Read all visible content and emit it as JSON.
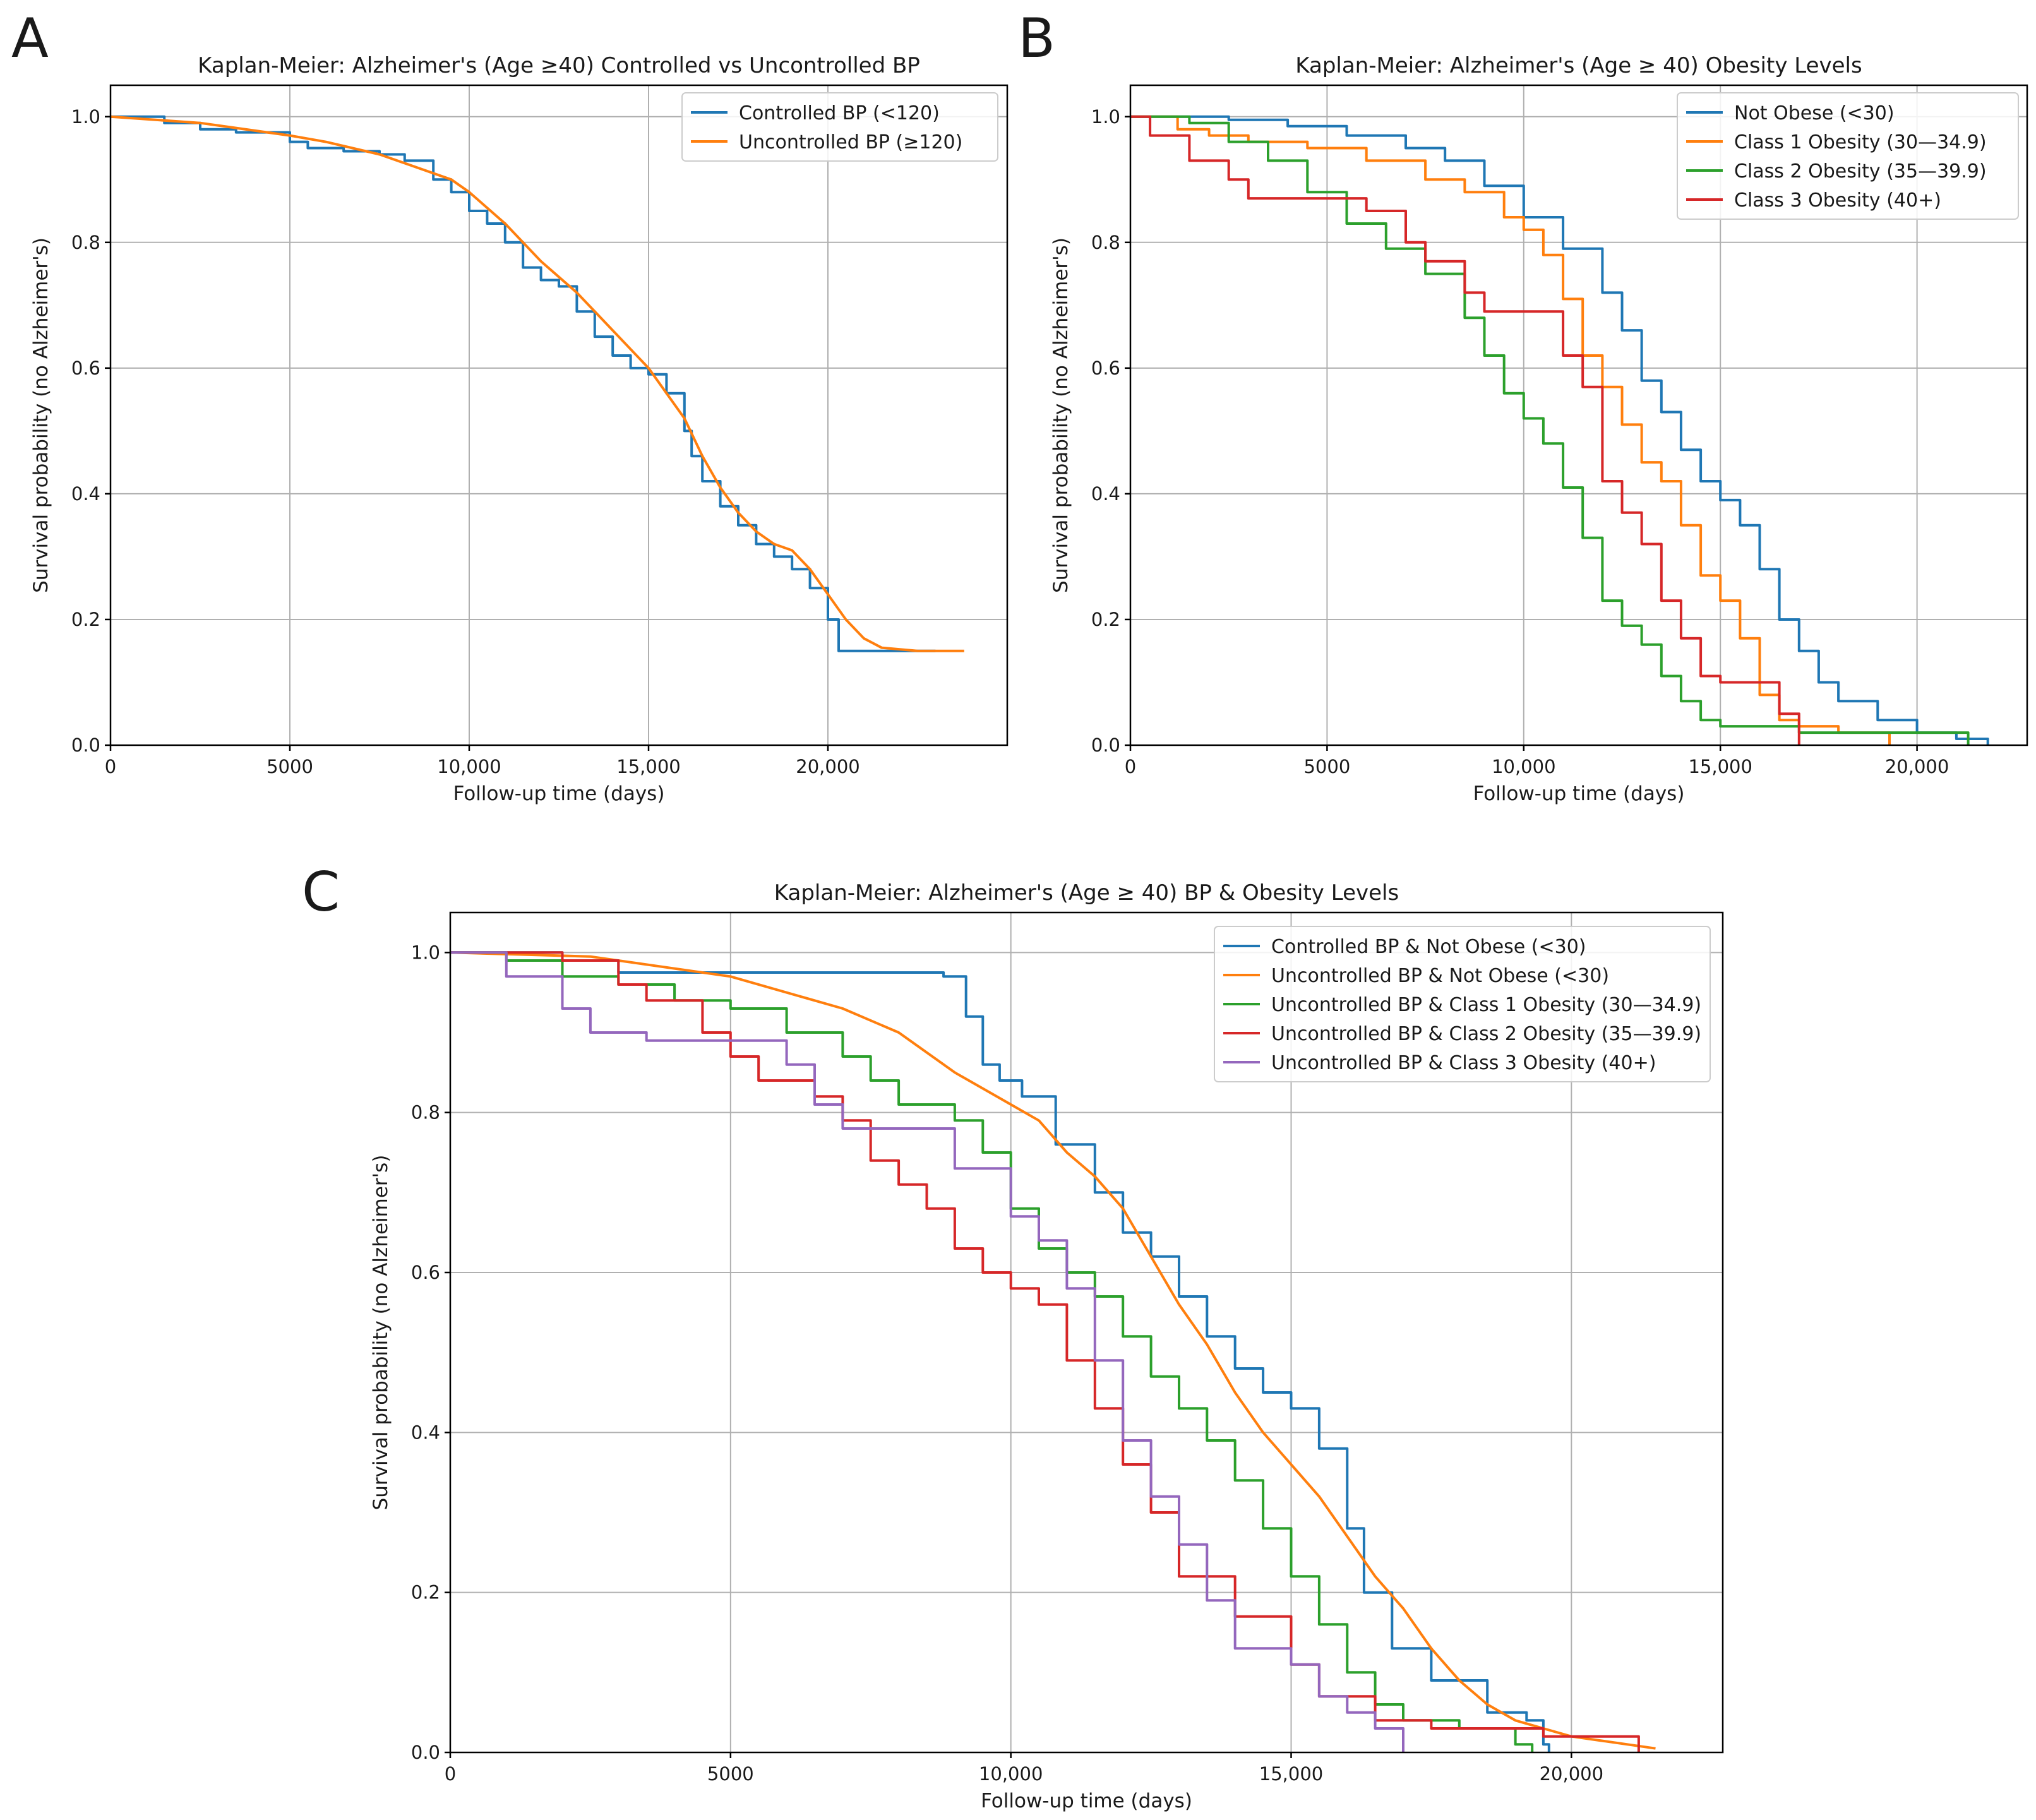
{
  "chart_data": [
    {
      "panel": "A",
      "type": "line",
      "title": "Kaplan-Meier: Alzheimer's (Age ≥40) Controlled vs Uncontrolled BP",
      "xlabel": "Follow-up time (days)",
      "ylabel": "Survival probability (no Alzheimer's)",
      "xlim": [
        0,
        25000
      ],
      "ylim": [
        0,
        1.05
      ],
      "xticks": [
        0,
        5000,
        10000,
        15000,
        20000
      ],
      "xtick_labels": [
        "0",
        "5000",
        "10,000",
        "15,000",
        "20,000"
      ],
      "yticks": [
        0,
        0.2,
        0.4,
        0.6,
        0.8,
        1.0
      ],
      "ytick_labels": [
        "0.0",
        "0.2",
        "0.4",
        "0.6",
        "0.8",
        "1.0"
      ],
      "grid": true,
      "legend_position": "top-right",
      "series": [
        {
          "name": "Controlled BP (<120)",
          "color": "#1f77b4",
          "step": true,
          "x": [
            0,
            1500,
            2500,
            3500,
            5000,
            5500,
            6500,
            7500,
            8200,
            9000,
            9500,
            10000,
            10500,
            11000,
            11500,
            12000,
            12500,
            13000,
            13500,
            14000,
            14500,
            15000,
            15500,
            16000,
            16200,
            16500,
            17000,
            17500,
            18000,
            18500,
            19000,
            19500,
            20000,
            20300,
            21500,
            23000
          ],
          "y": [
            1.0,
            0.99,
            0.98,
            0.975,
            0.96,
            0.95,
            0.945,
            0.94,
            0.93,
            0.9,
            0.88,
            0.85,
            0.83,
            0.8,
            0.76,
            0.74,
            0.73,
            0.69,
            0.65,
            0.62,
            0.6,
            0.59,
            0.56,
            0.5,
            0.46,
            0.42,
            0.38,
            0.35,
            0.32,
            0.3,
            0.28,
            0.25,
            0.2,
            0.15,
            0.15,
            0.15
          ]
        },
        {
          "name": "Uncontrolled BP (≥120)",
          "color": "#ff7f0e",
          "step": false,
          "x": [
            0,
            2500,
            5000,
            6000,
            7500,
            8500,
            9500,
            10000,
            11000,
            12000,
            13000,
            14000,
            15000,
            15500,
            16000,
            16500,
            17000,
            17500,
            18000,
            18500,
            19000,
            19500,
            20000,
            20500,
            21000,
            21500,
            22500,
            23800
          ],
          "y": [
            1.0,
            0.99,
            0.97,
            0.96,
            0.94,
            0.92,
            0.9,
            0.88,
            0.83,
            0.77,
            0.72,
            0.66,
            0.6,
            0.56,
            0.52,
            0.46,
            0.41,
            0.37,
            0.34,
            0.32,
            0.31,
            0.28,
            0.24,
            0.2,
            0.17,
            0.155,
            0.15,
            0.15
          ]
        }
      ]
    },
    {
      "panel": "B",
      "type": "line",
      "title": "Kaplan-Meier: Alzheimer's (Age ≥ 40) Obesity Levels",
      "xlabel": "Follow-up time (days)",
      "ylabel": "Survival probability (no Alzheimer's)",
      "xlim": [
        0,
        22800
      ],
      "ylim": [
        0,
        1.05
      ],
      "xticks": [
        0,
        5000,
        10000,
        15000,
        20000
      ],
      "xtick_labels": [
        "0",
        "5000",
        "10,000",
        "15,000",
        "20,000"
      ],
      "yticks": [
        0,
        0.2,
        0.4,
        0.6,
        0.8,
        1.0
      ],
      "ytick_labels": [
        "0.0",
        "0.2",
        "0.4",
        "0.6",
        "0.8",
        "1.0"
      ],
      "grid": true,
      "legend_position": "top-right",
      "series": [
        {
          "name": "Not Obese (<30)",
          "color": "#1f77b4",
          "step": true,
          "x": [
            0,
            2500,
            4000,
            5500,
            7000,
            8000,
            9000,
            10000,
            11000,
            12000,
            12500,
            13000,
            13500,
            14000,
            14500,
            15000,
            15500,
            16000,
            16500,
            17000,
            17500,
            18000,
            19000,
            20000,
            21000,
            21800
          ],
          "y": [
            1.0,
            0.995,
            0.985,
            0.97,
            0.95,
            0.93,
            0.89,
            0.84,
            0.79,
            0.72,
            0.66,
            0.58,
            0.53,
            0.47,
            0.42,
            0.39,
            0.35,
            0.28,
            0.2,
            0.15,
            0.1,
            0.07,
            0.04,
            0.02,
            0.01,
            0.0
          ]
        },
        {
          "name": "Class 1 Obesity (30—34.9)",
          "color": "#ff7f0e",
          "step": true,
          "x": [
            0,
            1200,
            2000,
            3000,
            4500,
            6000,
            7500,
            8500,
            9500,
            10000,
            10500,
            11000,
            11500,
            12000,
            12500,
            13000,
            13500,
            14000,
            14500,
            15000,
            15500,
            16000,
            16500,
            17000,
            18000,
            19300
          ],
          "y": [
            1.0,
            0.98,
            0.97,
            0.96,
            0.95,
            0.93,
            0.9,
            0.88,
            0.84,
            0.82,
            0.78,
            0.71,
            0.62,
            0.57,
            0.51,
            0.45,
            0.42,
            0.35,
            0.27,
            0.23,
            0.17,
            0.08,
            0.04,
            0.03,
            0.02,
            0.0
          ]
        },
        {
          "name": "Class 2 Obesity (35—39.9)",
          "color": "#2ca02c",
          "step": true,
          "x": [
            0,
            1500,
            2500,
            3500,
            4500,
            5500,
            6500,
            7500,
            8500,
            9000,
            9500,
            10000,
            10500,
            11000,
            11500,
            12000,
            12500,
            13000,
            13500,
            14000,
            14500,
            15000,
            16000,
            17000,
            19000,
            21100,
            21300
          ],
          "y": [
            1.0,
            0.99,
            0.96,
            0.93,
            0.88,
            0.83,
            0.79,
            0.75,
            0.68,
            0.62,
            0.56,
            0.52,
            0.48,
            0.41,
            0.33,
            0.23,
            0.19,
            0.16,
            0.11,
            0.07,
            0.04,
            0.03,
            0.03,
            0.02,
            0.02,
            0.02,
            0.0
          ]
        },
        {
          "name": "Class 3 Obesity (40+)",
          "color": "#d62728",
          "step": true,
          "x": [
            0,
            500,
            1500,
            2500,
            3000,
            4000,
            5000,
            6000,
            7000,
            7500,
            8500,
            9000,
            10000,
            11000,
            11500,
            12000,
            12500,
            13000,
            13500,
            14000,
            14500,
            15000,
            16000,
            16500,
            17000
          ],
          "y": [
            1.0,
            0.97,
            0.93,
            0.9,
            0.87,
            0.87,
            0.87,
            0.85,
            0.8,
            0.77,
            0.72,
            0.69,
            0.69,
            0.62,
            0.57,
            0.42,
            0.37,
            0.32,
            0.23,
            0.17,
            0.11,
            0.1,
            0.1,
            0.05,
            0.0
          ]
        }
      ]
    },
    {
      "panel": "C",
      "type": "line",
      "title": "Kaplan-Meier: Alzheimer's (Age ≥ 40) BP & Obesity Levels",
      "xlabel": "Follow-up time (days)",
      "ylabel": "Survival probability (no Alzheimer's)",
      "xlim": [
        0,
        22700
      ],
      "ylim": [
        0,
        1.05
      ],
      "xticks": [
        0,
        5000,
        10000,
        15000,
        20000
      ],
      "xtick_labels": [
        "0",
        "5000",
        "10,000",
        "15,000",
        "20,000"
      ],
      "yticks": [
        0,
        0.2,
        0.4,
        0.6,
        0.8,
        1.0
      ],
      "ytick_labels": [
        "0.0",
        "0.2",
        "0.4",
        "0.6",
        "0.8",
        "1.0"
      ],
      "grid": true,
      "legend_position": "top-right",
      "series": [
        {
          "name": "Controlled BP & Not Obese (<30)",
          "color": "#1f77b4",
          "step": true,
          "x": [
            0,
            2000,
            3000,
            8800,
            9200,
            9500,
            9800,
            10200,
            10800,
            11500,
            12000,
            12500,
            13000,
            13500,
            14000,
            14500,
            15000,
            15500,
            16000,
            16300,
            16800,
            17500,
            18500,
            19200,
            19500,
            19600
          ],
          "y": [
            1.0,
            0.99,
            0.975,
            0.97,
            0.92,
            0.86,
            0.84,
            0.82,
            0.76,
            0.7,
            0.65,
            0.62,
            0.57,
            0.52,
            0.48,
            0.45,
            0.43,
            0.38,
            0.28,
            0.2,
            0.13,
            0.09,
            0.05,
            0.04,
            0.01,
            0.0
          ]
        },
        {
          "name": "Uncontrolled BP & Not Obese (<30)",
          "color": "#ff7f0e",
          "step": false,
          "x": [
            0,
            2500,
            5000,
            7000,
            8000,
            9000,
            10000,
            10500,
            11000,
            11500,
            12000,
            12500,
            13000,
            13500,
            14000,
            14500,
            15000,
            15500,
            16000,
            16500,
            17000,
            17500,
            18000,
            18500,
            19000,
            19500,
            20000,
            21000,
            21500
          ],
          "y": [
            1.0,
            0.995,
            0.97,
            0.93,
            0.9,
            0.85,
            0.81,
            0.79,
            0.75,
            0.72,
            0.68,
            0.62,
            0.56,
            0.51,
            0.45,
            0.4,
            0.36,
            0.32,
            0.27,
            0.22,
            0.18,
            0.13,
            0.09,
            0.06,
            0.04,
            0.03,
            0.02,
            0.01,
            0.005
          ]
        },
        {
          "name": "Uncontrolled BP & Class 1 Obesity (30—34.9)",
          "color": "#2ca02c",
          "step": true,
          "x": [
            0,
            1000,
            2000,
            3000,
            4000,
            5000,
            6000,
            7000,
            7500,
            8000,
            9000,
            9500,
            10000,
            10500,
            11000,
            11500,
            12000,
            12500,
            13000,
            13500,
            14000,
            14500,
            15000,
            15500,
            16000,
            16500,
            17000,
            18000,
            19000,
            19300
          ],
          "y": [
            1.0,
            0.99,
            0.97,
            0.96,
            0.94,
            0.93,
            0.9,
            0.87,
            0.84,
            0.81,
            0.79,
            0.75,
            0.68,
            0.63,
            0.6,
            0.57,
            0.52,
            0.47,
            0.43,
            0.39,
            0.34,
            0.28,
            0.22,
            0.16,
            0.1,
            0.06,
            0.04,
            0.03,
            0.01,
            0.0
          ]
        },
        {
          "name": "Uncontrolled BP & Class 2 Obesity (35—39.9)",
          "color": "#d62728",
          "step": true,
          "x": [
            0,
            2000,
            3000,
            3500,
            4500,
            5000,
            5500,
            6500,
            7000,
            7500,
            8000,
            8500,
            9000,
            9500,
            10000,
            10500,
            11000,
            11500,
            12000,
            12500,
            13000,
            14000,
            15000,
            15500,
            16500,
            17500,
            19500,
            21200
          ],
          "y": [
            1.0,
            0.99,
            0.96,
            0.94,
            0.9,
            0.87,
            0.84,
            0.82,
            0.79,
            0.74,
            0.71,
            0.68,
            0.63,
            0.6,
            0.58,
            0.56,
            0.49,
            0.43,
            0.36,
            0.3,
            0.22,
            0.17,
            0.11,
            0.07,
            0.04,
            0.03,
            0.02,
            0.0
          ]
        },
        {
          "name": "Uncontrolled BP & Class 3 Obesity (40+)",
          "color": "#9467bd",
          "step": true,
          "x": [
            0,
            1000,
            2000,
            2500,
            3500,
            5000,
            6000,
            6500,
            7000,
            8000,
            9000,
            10000,
            10500,
            11000,
            11500,
            12000,
            12500,
            13000,
            13500,
            14000,
            15000,
            15500,
            16000,
            16500,
            17000
          ],
          "y": [
            1.0,
            0.97,
            0.93,
            0.9,
            0.89,
            0.89,
            0.86,
            0.81,
            0.78,
            0.78,
            0.73,
            0.67,
            0.64,
            0.58,
            0.49,
            0.39,
            0.32,
            0.26,
            0.19,
            0.13,
            0.11,
            0.07,
            0.05,
            0.03,
            0.0
          ]
        }
      ]
    }
  ]
}
